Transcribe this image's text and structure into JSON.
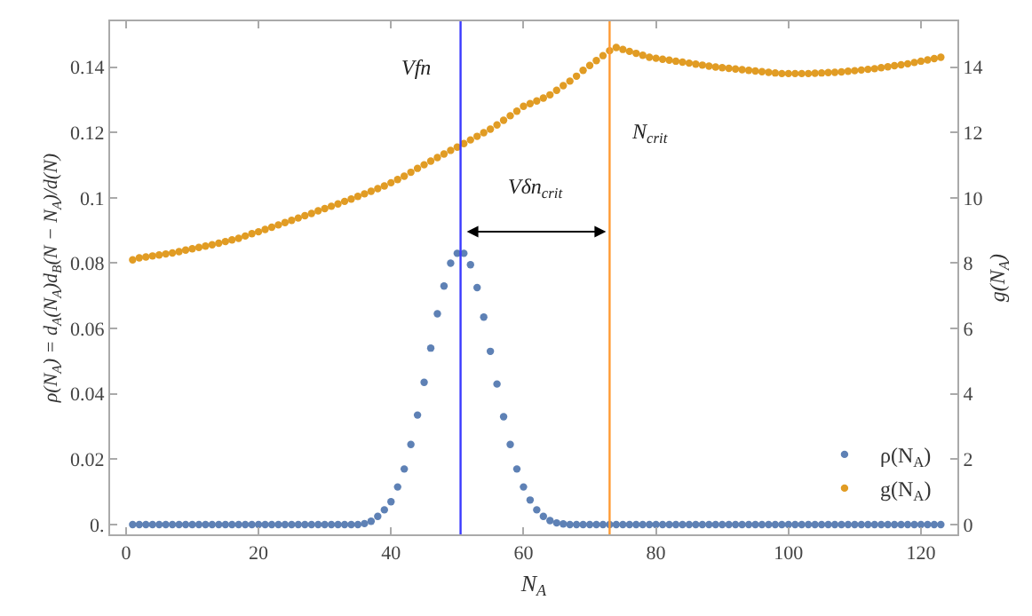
{
  "chart_data": {
    "type": "scatter",
    "xlabel": "N$_{A}$",
    "ylabel": "ρ(N$_{A}$) = d$_{A}$(N$_{A}$)d$_{B}$(N − N$_{A}$)/d(N)",
    "y2label": "g(N$_{A}$)",
    "x": [
      1,
      2,
      3,
      4,
      5,
      6,
      7,
      8,
      9,
      10,
      11,
      12,
      13,
      14,
      15,
      16,
      17,
      18,
      19,
      20,
      21,
      22,
      23,
      24,
      25,
      26,
      27,
      28,
      29,
      30,
      31,
      32,
      33,
      34,
      35,
      36,
      37,
      38,
      39,
      40,
      41,
      42,
      43,
      44,
      45,
      46,
      47,
      48,
      49,
      50,
      51,
      52,
      53,
      54,
      55,
      56,
      57,
      58,
      59,
      60,
      61,
      62,
      63,
      64,
      65,
      66,
      67,
      68,
      69,
      70,
      71,
      72,
      73,
      74,
      75,
      76,
      77,
      78,
      79,
      80,
      81,
      82,
      83,
      84,
      85,
      86,
      87,
      88,
      89,
      90,
      91,
      92,
      93,
      94,
      95,
      96,
      97,
      98,
      99,
      100,
      101,
      102,
      103,
      104,
      105,
      106,
      107,
      108,
      109,
      110,
      111,
      112,
      113,
      114,
      115,
      116,
      117,
      118,
      119,
      120,
      121,
      122,
      123
    ],
    "series": [
      {
        "name": "ρ(N$_{A}$)",
        "color": "#5e81b5",
        "values": [
          0,
          0,
          0,
          0,
          0,
          0,
          0,
          0,
          0,
          0,
          0,
          0,
          0,
          0,
          0,
          0,
          0,
          0,
          0,
          0,
          0,
          0,
          0,
          0,
          0,
          0,
          0,
          0,
          0,
          0,
          0,
          0,
          0,
          0,
          0,
          0.0003,
          0.001,
          0.0025,
          0.0045,
          0.007,
          0.0115,
          0.017,
          0.0245,
          0.0335,
          0.0435,
          0.054,
          0.0645,
          0.073,
          0.08,
          0.083,
          0.083,
          0.0795,
          0.0725,
          0.0635,
          0.053,
          0.043,
          0.033,
          0.0245,
          0.017,
          0.0115,
          0.0075,
          0.0045,
          0.0025,
          0.0012,
          0.0005,
          0.0002,
          0,
          0,
          0,
          0,
          0,
          0,
          0,
          0,
          0,
          0,
          0,
          0,
          0,
          0,
          0,
          0,
          0,
          0,
          0,
          0,
          0,
          0,
          0,
          0,
          0,
          0,
          0,
          0,
          0,
          0,
          0,
          0,
          0,
          0,
          0,
          0,
          0,
          0,
          0,
          0,
          0,
          0,
          0,
          0,
          0,
          0,
          0,
          0,
          0,
          0,
          0,
          0,
          0,
          0,
          0,
          0,
          0
        ]
      },
      {
        "name": "g(N$_{A}$)",
        "color": "#e19c24",
        "axis": "y2",
        "values": [
          8.1,
          8.16,
          8.19,
          8.22,
          8.25,
          8.28,
          8.31,
          8.35,
          8.4,
          8.44,
          8.48,
          8.52,
          8.56,
          8.61,
          8.66,
          8.71,
          8.76,
          8.83,
          8.9,
          8.96,
          9.03,
          9.1,
          9.17,
          9.24,
          9.31,
          9.38,
          9.45,
          9.52,
          9.6,
          9.67,
          9.74,
          9.81,
          9.89,
          9.96,
          10.04,
          10.12,
          10.2,
          10.28,
          10.36,
          10.46,
          10.56,
          10.66,
          10.78,
          10.9,
          11.01,
          11.12,
          11.23,
          11.34,
          11.45,
          11.55,
          11.66,
          11.77,
          11.88,
          11.99,
          12.1,
          12.23,
          12.37,
          12.51,
          12.65,
          12.8,
          12.88,
          12.96,
          13.05,
          13.15,
          13.29,
          13.43,
          13.57,
          13.72,
          13.9,
          14.05,
          14.2,
          14.35,
          14.5,
          14.6,
          14.54,
          14.48,
          14.42,
          14.36,
          14.3,
          14.27,
          14.24,
          14.21,
          14.18,
          14.15,
          14.12,
          14.09,
          14.06,
          14.03,
          14.0,
          13.98,
          13.96,
          13.94,
          13.92,
          13.9,
          13.88,
          13.86,
          13.84,
          13.82,
          13.8,
          13.8,
          13.8,
          13.8,
          13.8,
          13.81,
          13.82,
          13.83,
          13.84,
          13.85,
          13.87,
          13.89,
          13.91,
          13.93,
          13.95,
          13.98,
          14.01,
          14.04,
          14.07,
          14.1,
          14.14,
          14.18,
          14.22,
          14.26,
          14.3
        ]
      }
    ],
    "xlim": [
      -2.4,
      125.5
    ],
    "xticks": [
      0,
      20,
      40,
      60,
      80,
      100,
      120
    ],
    "ylim": [
      -0.003,
      0.154
    ],
    "yticks": [
      {
        "value": 0,
        "label": "0."
      },
      0.02,
      0.04,
      0.06,
      0.08,
      {
        "value": 0.1,
        "label": "0.1"
      },
      0.12,
      0.14
    ],
    "y2lim": [
      -0.3,
      15.4
    ],
    "y2ticks": [
      0,
      2,
      4,
      6,
      8,
      10,
      12,
      14
    ],
    "ref_lines": [
      {
        "axis": "x",
        "value": 50.5,
        "label": "Vfn",
        "color": "#3a3aff"
      },
      {
        "axis": "x",
        "value": 73,
        "label": "N$_{crit}$",
        "color": "#ff9a33"
      }
    ],
    "annotations": [
      "Vδn$_{crit}$"
    ],
    "grid": false,
    "legend": "bottom right",
    "marker": "circle"
  }
}
